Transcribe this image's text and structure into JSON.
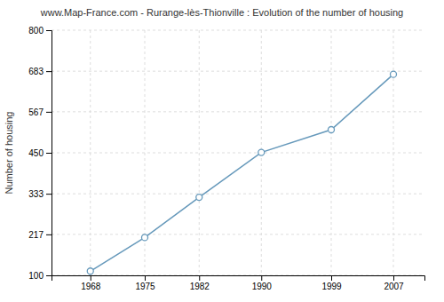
{
  "chart_data": {
    "type": "line",
    "title": "www.Map-France.com - Rurange-lès-Thionville : Evolution of the number of housing",
    "ylabel": "Number of housing",
    "x": [
      1968,
      1975,
      1982,
      1990,
      1999,
      2007
    ],
    "values": [
      112,
      208,
      323,
      451,
      516,
      674
    ],
    "xlim": [
      1963,
      2011
    ],
    "xticks": [
      1968,
      1975,
      1982,
      1990,
      1999,
      2007
    ],
    "ylim": [
      100,
      800
    ],
    "yticks": [
      100,
      217,
      333,
      450,
      567,
      683,
      800
    ],
    "color": "#6699bb",
    "marker": "circle",
    "grid": true
  }
}
